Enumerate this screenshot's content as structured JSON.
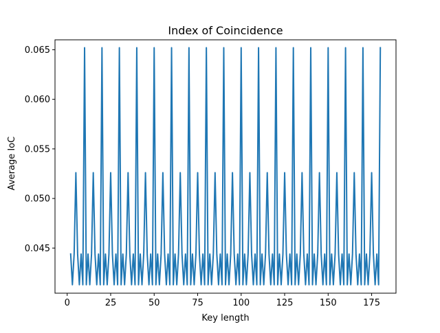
{
  "chart_data": {
    "type": "line",
    "title": "Index of Coincidence",
    "xlabel": "Key length",
    "ylabel": "Average IoC",
    "xlim": [
      -7,
      189
    ],
    "ylim": [
      0.04045,
      0.066
    ],
    "xticks": [
      0,
      25,
      50,
      75,
      100,
      125,
      150,
      175
    ],
    "xtick_labels": [
      "0",
      "25",
      "50",
      "75",
      "100",
      "125",
      "150",
      "175"
    ],
    "yticks": [
      0.045,
      0.05,
      0.055,
      0.06,
      0.065
    ],
    "ytick_labels": [
      "0.045",
      "0.050",
      "0.055",
      "0.060",
      "0.065"
    ],
    "grid": false,
    "legend": false,
    "series": [
      {
        "color": "#1f77b4",
        "x": [
          2,
          3,
          4,
          5,
          6,
          7,
          8,
          9,
          10,
          11,
          12,
          13,
          14,
          15,
          16,
          17,
          18,
          19,
          20,
          21,
          22,
          23,
          24,
          25,
          26,
          27,
          28,
          29,
          30,
          31,
          32,
          33,
          34,
          35,
          36,
          37,
          38,
          39,
          40,
          41,
          42,
          43,
          44,
          45,
          46,
          47,
          48,
          49,
          50,
          51,
          52,
          53,
          54,
          55,
          56,
          57,
          58,
          59,
          60,
          61,
          62,
          63,
          64,
          65,
          66,
          67,
          68,
          69,
          70,
          71,
          72,
          73,
          74,
          75,
          76,
          77,
          78,
          79,
          80,
          81,
          82,
          83,
          84,
          85,
          86,
          87,
          88,
          89,
          90,
          91,
          92,
          93,
          94,
          95,
          96,
          97,
          98,
          99,
          100,
          101,
          102,
          103,
          104,
          105,
          106,
          107,
          108,
          109,
          110,
          111,
          112,
          113,
          114,
          115,
          116,
          117,
          118,
          119,
          120,
          121,
          122,
          123,
          124,
          125,
          126,
          127,
          128,
          129,
          130,
          131,
          132,
          133,
          134,
          135,
          136,
          137,
          138,
          139,
          140,
          141,
          142,
          143,
          144,
          145,
          146,
          147,
          148,
          149,
          150,
          151,
          152,
          153,
          154,
          155,
          156,
          157,
          158,
          159,
          160,
          161,
          162,
          163,
          164,
          165,
          166,
          167,
          168,
          169,
          170,
          171,
          172,
          173,
          174,
          175,
          176,
          177,
          178,
          179,
          180
        ],
        "y": [
          0.0444,
          0.0413,
          0.0444,
          0.0526,
          0.0444,
          0.0413,
          0.0444,
          0.0413,
          0.0652,
          0.0413,
          0.0444,
          0.0413,
          0.0444,
          0.0526,
          0.0444,
          0.0413,
          0.0444,
          0.0413,
          0.0652,
          0.0413,
          0.0444,
          0.0413,
          0.0444,
          0.0526,
          0.0444,
          0.0413,
          0.0444,
          0.0413,
          0.0652,
          0.0413,
          0.0444,
          0.0413,
          0.0444,
          0.0526,
          0.0444,
          0.0413,
          0.0444,
          0.0413,
          0.0652,
          0.0413,
          0.0444,
          0.0413,
          0.0444,
          0.0526,
          0.0444,
          0.0413,
          0.0444,
          0.0413,
          0.0652,
          0.0413,
          0.0444,
          0.0413,
          0.0444,
          0.0526,
          0.0444,
          0.0413,
          0.0444,
          0.0413,
          0.0652,
          0.0413,
          0.0444,
          0.0413,
          0.0444,
          0.0526,
          0.0444,
          0.0413,
          0.0444,
          0.0413,
          0.0652,
          0.0413,
          0.0444,
          0.0413,
          0.0444,
          0.0526,
          0.0444,
          0.0413,
          0.0444,
          0.0413,
          0.0652,
          0.0413,
          0.0444,
          0.0413,
          0.0444,
          0.0526,
          0.0444,
          0.0413,
          0.0444,
          0.0413,
          0.0652,
          0.0413,
          0.0444,
          0.0413,
          0.0444,
          0.0526,
          0.0444,
          0.0413,
          0.0444,
          0.0413,
          0.0652,
          0.0413,
          0.0444,
          0.0413,
          0.0444,
          0.0526,
          0.0444,
          0.0413,
          0.0444,
          0.0413,
          0.0652,
          0.0413,
          0.0444,
          0.0413,
          0.0444,
          0.0526,
          0.0444,
          0.0413,
          0.0444,
          0.0413,
          0.0652,
          0.0413,
          0.0444,
          0.0413,
          0.0444,
          0.0526,
          0.0444,
          0.0413,
          0.0444,
          0.0413,
          0.0652,
          0.0413,
          0.0444,
          0.0413,
          0.0444,
          0.0526,
          0.0444,
          0.0413,
          0.0444,
          0.0413,
          0.0652,
          0.0413,
          0.0444,
          0.0413,
          0.0444,
          0.0526,
          0.0444,
          0.0413,
          0.0444,
          0.0413,
          0.0652,
          0.0413,
          0.0444,
          0.0413,
          0.0444,
          0.0526,
          0.0444,
          0.0413,
          0.0444,
          0.0413,
          0.0652,
          0.0413,
          0.0444,
          0.0413,
          0.0444,
          0.0526,
          0.0444,
          0.0413,
          0.0444,
          0.0413,
          0.0652,
          0.0413,
          0.0444,
          0.0413,
          0.0444,
          0.0526,
          0.0444,
          0.0413,
          0.0444,
          0.0413,
          0.0652
        ]
      }
    ]
  }
}
